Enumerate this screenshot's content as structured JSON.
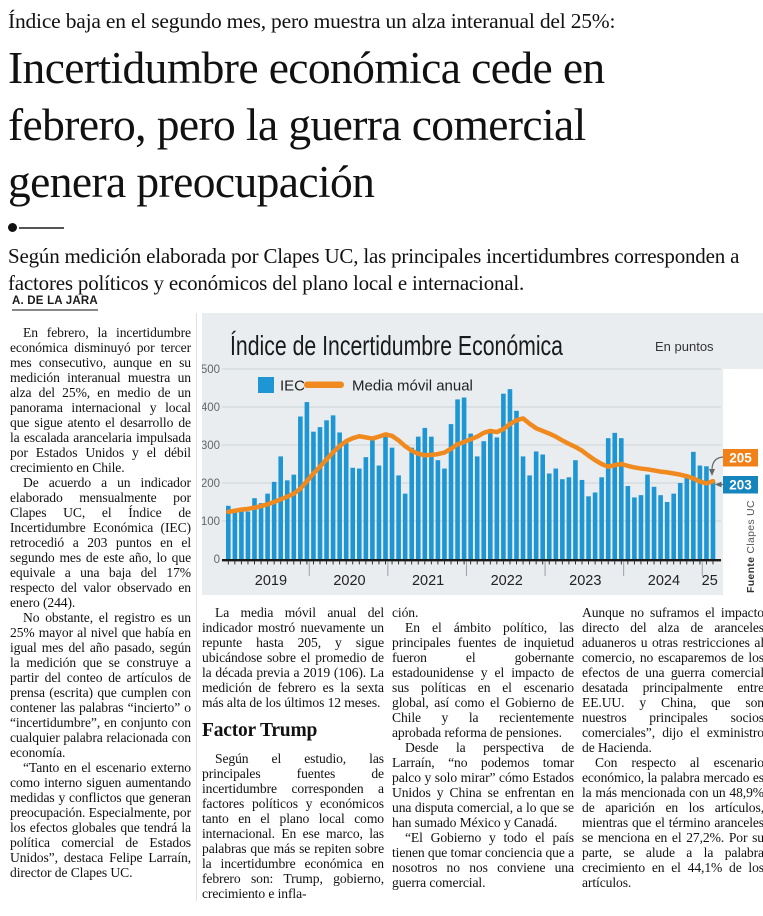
{
  "kicker": "Índice baja en el segundo mes, pero muestra un alza interanual del 25%:",
  "headline_lines": [
    "Incertidumbre económica cede en",
    "febrero, pero la guerra comercial",
    "genera preocupación"
  ],
  "subtitle": "Según medición elaborada por Clapes UC, las principales incertidumbres corresponden a factores políticos y económicos del plano local e internacional.",
  "byline": "A. DE LA JARA",
  "article": {
    "col1": [
      "En febrero, la incertidumbre económica disminuyó por tercer mes consecutivo, aunque en su medición interanual muestra un alza del 25%, en medio de un panorama internacional y local que sigue atento el desarrollo de la escalada arancelaria impulsada por Estados Unidos y el débil crecimiento en Chile.",
      "De acuerdo a un indicador elaborado mensualmente por Clapes UC, el Índice de Incertidumbre Económica (IEC) retrocedió a 203 puntos en el segundo mes de este año, lo que equivale a una baja del 17% respecto del valor observado en enero (244).",
      "No obstante, el registro es un 25% mayor al nivel que había en igual mes del año pasado, según la medición que se construye a partir del conteo de artículos de prensa (escrita) que cumplen con contener las palabras “incierto” o “incertidumbre”, en conjunto con cualquier palabra relacionada con economía.",
      "“Tanto en el escenario externo como interno siguen aumentando medidas y conflictos que generan preocupación. Especialmente, por los efectos globales que tendrá la política comercial de Estados Unidos”, destaca Felipe Larraín, director de Clapes UC."
    ],
    "col2_p1": "La media móvil anual del indicador mostró nuevamente un repunte hasta 205, y sigue ubicándose sobre el promedio de la década previa a 2019 (106). La medición de febrero es la sexta más alta de los últimos 12 meses.",
    "col2_heading": "Factor Trump",
    "col2_p2": "Según el estudio, las principales fuentes de incertidumbre corresponden a factores políticos y económicos tanto en el plano local como internacional. En ese marco, las palabras que más se repiten sobre la incertidumbre económica en febrero son: Trump, gobierno, crecimiento e infla-",
    "col3": [
      "ción.",
      "En el ámbito político, las principales fuentes de inquietud fueron el gobernante estadounidense y el impacto de sus políticas en el escenario global, así como el Gobierno de Chile y la recientemente aprobada reforma de pensiones.",
      "Desde la perspectiva de Larraín, “no podemos tomar palco y solo mirar” cómo Estados Unidos y China se enfrentan en una disputa comercial, a lo que se han sumado México y Canadá.",
      "“El Gobierno y todo el país tienen que tomar conciencia que a nosotros no nos conviene una guerra comercial."
    ],
    "col4": [
      "Aunque no suframos el impacto directo del alza de aranceles aduaneros u otras restricciones al comercio, no escaparemos de los efectos de una guerra comercial desatada principalmente entre EE.UU. y China, que son nuestros principales socios comerciales”, dijo el exministro de Hacienda.",
      "Con respecto al escenario económico, la palabra mercado es la más mencionada con un 48,9% de aparición en los artículos, mientras que el término aranceles se menciona en el 27,2%. Por su parte, se alude a la palabra crecimiento en el 44,1% de los artículos."
    ]
  },
  "chart_data": {
    "type": "bar",
    "title": "Índice de Incertidumbre Económica",
    "unit_label": "En puntos",
    "legend": {
      "bars": "IEC",
      "line": "Media móvil anual"
    },
    "ylim": [
      0,
      500
    ],
    "yticks": [
      0,
      100,
      200,
      300,
      400,
      500
    ],
    "grid": true,
    "x_year_labels": [
      "2019",
      "2020",
      "2021",
      "2022",
      "2023",
      "2024",
      "25"
    ],
    "year_start_indices": [
      1,
      13,
      25,
      37,
      49,
      61,
      73
    ],
    "series": [
      {
        "name": "IEC",
        "values": [
          140,
          125,
          132,
          125,
          160,
          147,
          172,
          203,
          270,
          207,
          222,
          375,
          413,
          335,
          347,
          365,
          378,
          333,
          305,
          240,
          238,
          268,
          315,
          246,
          330,
          293,
          220,
          172,
          293,
          322,
          345,
          322,
          260,
          238,
          355,
          420,
          425,
          330,
          270,
          310,
          340,
          320,
          435,
          447,
          390,
          270,
          220,
          283,
          275,
          225,
          238,
          210,
          215,
          260,
          208,
          165,
          175,
          215,
          318,
          332,
          318,
          192,
          162,
          168,
          222,
          190,
          168,
          150,
          172,
          200,
          215,
          282,
          246,
          244,
          203
        ]
      },
      {
        "name": "Media móvil anual",
        "values": [
          124,
          127,
          130,
          132,
          135,
          139,
          144,
          150,
          157,
          164,
          172,
          185,
          205,
          225,
          243,
          262,
          281,
          297,
          310,
          318,
          323,
          320,
          317,
          322,
          328,
          324,
          312,
          297,
          285,
          277,
          273,
          274,
          276,
          280,
          290,
          302,
          308,
          315,
          322,
          332,
          337,
          334,
          342,
          355,
          365,
          370,
          356,
          344,
          337,
          330,
          322,
          312,
          303,
          295,
          285,
          272,
          260,
          250,
          243,
          247,
          250,
          245,
          241,
          238,
          236,
          233,
          230,
          228,
          225,
          222,
          218,
          212,
          204,
          199,
          205
        ]
      }
    ],
    "callouts": {
      "line_value": "205",
      "bar_value": "203"
    },
    "source_bold": "Fuente",
    "source": "Clapes UC",
    "colors": {
      "bar": "#1e96d3",
      "line": "#f18a1e",
      "bar_callout_box": "#1486bd",
      "line_callout_box": "#f08119",
      "panel_bg": "#e9edf0",
      "gridline": "#cdd2d6",
      "axis": "#1a1a1a"
    }
  }
}
